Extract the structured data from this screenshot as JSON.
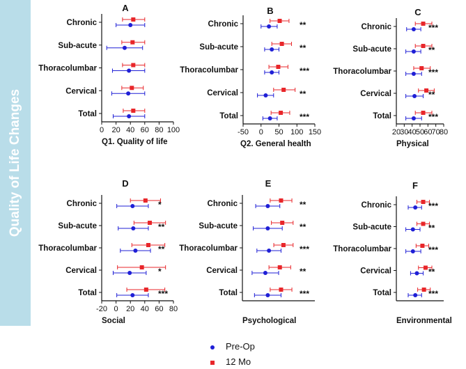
{
  "side_title": "Quality of Life Changes",
  "colors": {
    "pre_op": "#1f1fd6",
    "mo12": "#e8262a",
    "banner": "#b9dde9"
  },
  "legend": [
    {
      "label": "Pre-Op",
      "marker": "circle",
      "color": "#1f1fd6"
    },
    {
      "label": "12 Mo",
      "marker": "square",
      "color": "#e8262a"
    }
  ],
  "chart_data": [
    {
      "panel": "A",
      "type": "scatter",
      "xlabel": "Q1. Quality of life",
      "categories": [
        "Chronic",
        "Sub-acute",
        "Thoracolumbar",
        "Cervical",
        "Total"
      ],
      "xlim": [
        0,
        100
      ],
      "xticks": [
        0,
        20,
        40,
        60,
        80,
        100
      ],
      "series": [
        {
          "name": "Pre-Op",
          "mean": [
            40,
            32,
            38,
            37,
            38
          ],
          "low": [
            20,
            7,
            15,
            14,
            16
          ],
          "high": [
            60,
            57,
            60,
            60,
            60
          ]
        },
        {
          "name": "12 Mo",
          "mean": [
            44,
            43,
            44,
            42,
            44
          ],
          "low": [
            29,
            28,
            29,
            28,
            30
          ],
          "high": [
            60,
            60,
            60,
            58,
            60
          ]
        }
      ],
      "significance": [
        "",
        "",
        "",
        "",
        ""
      ]
    },
    {
      "panel": "B",
      "type": "scatter",
      "xlabel": "Q2. General health",
      "categories": [
        "Chronic",
        "Sub-acute",
        "Thoracolumbar",
        "Cervical",
        "Total"
      ],
      "xlim": [
        -50,
        150
      ],
      "xticks": [
        -50,
        0,
        50,
        100,
        150
      ],
      "series": [
        {
          "name": "Pre-Op",
          "mean": [
            22,
            30,
            30,
            13,
            25
          ],
          "low": [
            0,
            10,
            10,
            -10,
            5
          ],
          "high": [
            45,
            50,
            50,
            35,
            45
          ]
        },
        {
          "name": "12 Mo",
          "mean": [
            52,
            58,
            48,
            63,
            55
          ],
          "low": [
            25,
            30,
            22,
            35,
            28
          ],
          "high": [
            78,
            85,
            75,
            95,
            80
          ]
        }
      ],
      "significance": [
        "**",
        "**",
        "***",
        "**",
        "***"
      ]
    },
    {
      "panel": "C",
      "type": "scatter",
      "xlabel": "Physical",
      "categories": [
        "Chronic",
        "Sub-acute",
        "Thoracolumbar",
        "Cervical",
        "Total"
      ],
      "xlim": [
        20,
        80
      ],
      "xticks": [
        20,
        30,
        40,
        50,
        60,
        70,
        80
      ],
      "series": [
        {
          "name": "Pre-Op",
          "mean": [
            42,
            42,
            42,
            43,
            42
          ],
          "low": [
            33,
            32,
            32,
            32,
            32
          ],
          "high": [
            51,
            51,
            52,
            54,
            52
          ]
        },
        {
          "name": "12 Mo",
          "mean": [
            54,
            54,
            52,
            58,
            54
          ],
          "low": [
            44,
            44,
            42,
            48,
            44
          ],
          "high": [
            65,
            65,
            63,
            68,
            65
          ]
        }
      ],
      "significance": [
        "***",
        "**",
        "***",
        "**",
        "***"
      ]
    },
    {
      "panel": "D",
      "type": "scatter",
      "xlabel": "Social",
      "categories": [
        "Chronic",
        "Sub-acute",
        "Thoracolumbar",
        "Cervical",
        "Total"
      ],
      "xlim": [
        -20,
        80
      ],
      "xticks": [
        -20,
        0,
        20,
        40,
        60,
        80
      ],
      "series": [
        {
          "name": "Pre-Op",
          "mean": [
            23,
            24,
            27,
            19,
            23
          ],
          "low": [
            1,
            3,
            6,
            -4,
            1
          ],
          "high": [
            45,
            45,
            48,
            42,
            45
          ]
        },
        {
          "name": "12 Mo",
          "mean": [
            41,
            47,
            45,
            36,
            42
          ],
          "low": [
            20,
            25,
            22,
            2,
            15
          ],
          "high": [
            62,
            69,
            68,
            69,
            68
          ]
        }
      ],
      "significance": [
        "*",
        "**",
        "**",
        "*",
        "***"
      ]
    },
    {
      "panel": "E",
      "type": "scatter",
      "xlabel": "Psychological",
      "categories": [
        "Chronic",
        "Sub-acute",
        "Thoracolumbar",
        "Cervical",
        "Total"
      ],
      "xlim": [
        20,
        80
      ],
      "xticks": [],
      "series": [
        {
          "name": "Pre-Op",
          "mean": [
            41,
            41,
            42,
            39,
            41
          ],
          "low": [
            31,
            29,
            32,
            28,
            30
          ],
          "high": [
            51,
            53,
            52,
            50,
            52
          ]
        },
        {
          "name": "12 Mo",
          "mean": [
            52,
            53,
            54,
            51,
            52
          ],
          "low": [
            43,
            44,
            46,
            42,
            43
          ],
          "high": [
            61,
            62,
            62,
            60,
            61
          ]
        }
      ],
      "significance": [
        "**",
        "**",
        "***",
        "**",
        "***"
      ]
    },
    {
      "panel": "F",
      "type": "scatter",
      "xlabel": "Environmental",
      "categories": [
        "Chronic",
        "Sub-acute",
        "Thoracolumbar",
        "Cervical",
        "Total"
      ],
      "xlim": [
        20,
        80
      ],
      "xticks": [],
      "series": [
        {
          "name": "Pre-Op",
          "mean": [
            44,
            41,
            41,
            46,
            44
          ],
          "low": [
            35,
            32,
            32,
            38,
            35
          ],
          "high": [
            52,
            50,
            51,
            54,
            52
          ]
        },
        {
          "name": "12 Mo",
          "mean": [
            54,
            54,
            53,
            57,
            55
          ],
          "low": [
            46,
            46,
            45,
            48,
            47
          ],
          "high": [
            62,
            62,
            61,
            65,
            63
          ]
        }
      ],
      "significance": [
        "***",
        "**",
        "***",
        "**",
        "***"
      ]
    }
  ]
}
